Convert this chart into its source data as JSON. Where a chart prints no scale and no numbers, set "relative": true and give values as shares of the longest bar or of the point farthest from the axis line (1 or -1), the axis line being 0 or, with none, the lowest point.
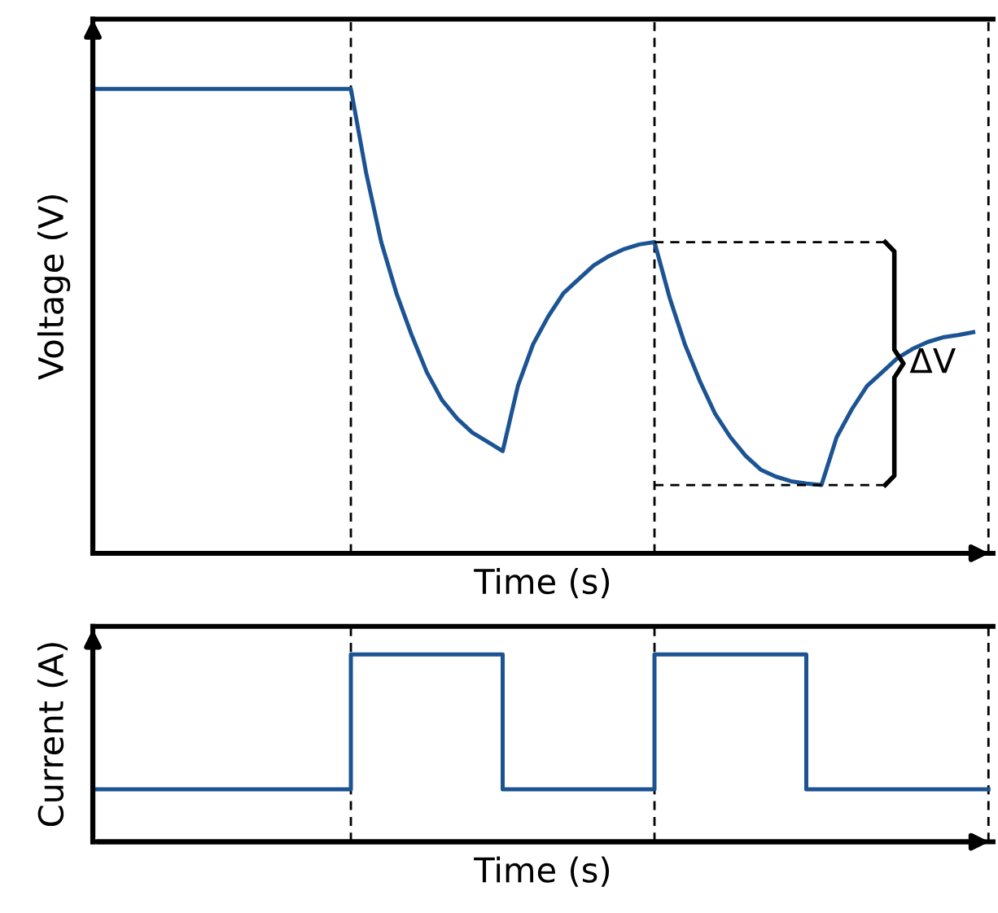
{
  "chart_data": [
    {
      "type": "line",
      "ylabel": "Voltage (V)",
      "xlabel": "Time (s)",
      "relative": true,
      "tick_labels": false,
      "grid": "x",
      "legend": false,
      "categories": [
        null,
        null,
        null,
        null,
        null,
        null,
        null,
        null,
        null,
        null,
        null,
        null,
        null,
        null,
        null,
        null,
        null,
        null,
        null,
        null,
        null,
        null,
        null,
        null,
        null,
        null,
        null,
        null,
        null,
        null,
        null,
        null,
        null,
        null,
        null,
        null,
        null,
        null,
        null,
        null,
        null,
        null,
        null,
        null,
        null,
        null,
        null,
        null,
        null,
        null,
        null,
        null,
        null,
        null,
        null,
        null,
        null,
        null,
        null,
        null
      ],
      "series": [
        {
          "color": "#1c5493",
          "values": [
            1.0,
            1.0,
            1.0,
            1.0,
            1.0,
            1.0,
            1.0,
            1.0,
            1.0,
            1.0,
            1.0,
            1.0,
            1.0,
            1.0,
            1.0,
            1.0,
            1.0,
            1.0,
            0.82,
            0.67,
            0.56,
            0.47,
            0.39,
            0.33,
            0.29,
            0.26,
            0.24,
            0.22,
            0.36,
            0.45,
            0.51,
            0.56,
            0.59,
            0.62,
            0.64,
            0.655,
            0.665,
            0.67,
            0.55,
            0.45,
            0.37,
            0.3,
            0.25,
            0.21,
            0.18,
            0.165,
            0.155,
            0.15,
            0.147,
            0.25,
            0.31,
            0.36,
            0.39,
            0.42,
            0.44,
            0.455,
            0.465,
            0.47,
            0.476,
            null
          ]
        }
      ],
      "annotations": [
        "ΔV"
      ]
    },
    {
      "type": "step",
      "ylabel": "Current (A)",
      "xlabel": "Time (s)",
      "relative": true,
      "tick_labels": false,
      "grid": "x",
      "legend": false,
      "categories": [
        null,
        null,
        null,
        null,
        null,
        null,
        null,
        null,
        null,
        null,
        null,
        null,
        null,
        null,
        null,
        null,
        null,
        null,
        null,
        null,
        null,
        null,
        null,
        null,
        null,
        null,
        null,
        null,
        null,
        null,
        null,
        null,
        null,
        null,
        null,
        null,
        null,
        null,
        null,
        null,
        null,
        null,
        null,
        null,
        null,
        null,
        null,
        null,
        null,
        null,
        null,
        null,
        null,
        null,
        null,
        null,
        null,
        null,
        null,
        null
      ],
      "series": [
        {
          "color": "#1c5493",
          "values": [
            0.28,
            0.28,
            0.28,
            0.28,
            0.28,
            0.28,
            0.28,
            0.28,
            0.28,
            0.28,
            0.28,
            0.28,
            0.28,
            0.28,
            0.28,
            0.28,
            0.28,
            1,
            1,
            1,
            1,
            1,
            1,
            1,
            1,
            1,
            1,
            0.28,
            0.28,
            0.28,
            0.28,
            0.28,
            0.28,
            0.28,
            0.28,
            0.28,
            0.28,
            1,
            1,
            1,
            1,
            1,
            1,
            1,
            1,
            1,
            1,
            0.28,
            0.28,
            0.28,
            0.28,
            0.28,
            0.28,
            0.28,
            0.28,
            0.28,
            0.28,
            0.28,
            0.28,
            0.28
          ]
        }
      ]
    }
  ]
}
